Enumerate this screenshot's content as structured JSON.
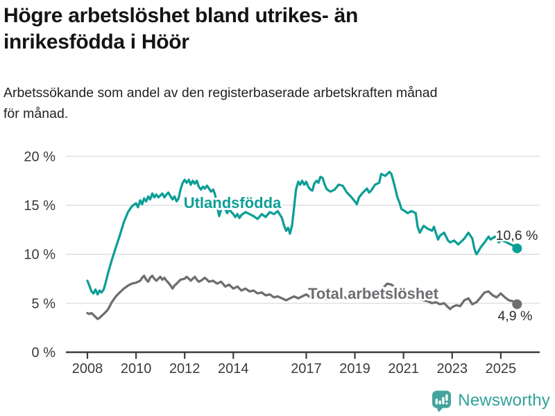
{
  "header": {
    "title_lines": [
      "Högre arbetslöshet bland utrikes- än",
      "inrikesfödda i Höör"
    ],
    "subtitle_lines": [
      "Arbetssökande som andel av den registerbaserade arbetskraften månad",
      "för månad."
    ]
  },
  "footer": {
    "brand": "Newsworthy",
    "logo_icon": "bar-chart-speech-bubble-icon"
  },
  "colors": {
    "foreign_born_line": "#0d9e96",
    "total_line": "#6d6d72",
    "grid": "#dcdcdc",
    "axis": "#3a3a3a",
    "tick_text": "#3a3a3a",
    "brand_teal": "#30a29a",
    "brand_icon_teal": "#44a39c"
  },
  "chart_data": {
    "type": "line",
    "unit": "%",
    "grid": true,
    "legend_position": "inline-labels",
    "x_axis": {
      "tick_years": [
        2008,
        2010,
        2012,
        2014,
        2017,
        2019,
        2021,
        2023,
        2025
      ],
      "tick_labels": [
        "2008",
        "2010",
        "2012",
        "2014",
        "2017",
        "2019",
        "2021",
        "2023",
        "2025"
      ],
      "range": [
        2007.1,
        2026.4
      ]
    },
    "y_axis": {
      "ticks": [
        0,
        5,
        10,
        15,
        20
      ],
      "tick_labels": [
        "0 %",
        "5 %",
        "10 %",
        "15 %",
        "20 %"
      ],
      "range": [
        0,
        20.8
      ]
    },
    "series": [
      {
        "name": "Utlandsfödda",
        "color": "#0d9e96",
        "end_label": "10,6 %",
        "end_value": 10.6,
        "points": [
          [
            2008.0,
            7.3
          ],
          [
            2008.08,
            6.8
          ],
          [
            2008.17,
            6.2
          ],
          [
            2008.25,
            6.0
          ],
          [
            2008.33,
            6.4
          ],
          [
            2008.42,
            5.9
          ],
          [
            2008.5,
            6.3
          ],
          [
            2008.58,
            6.1
          ],
          [
            2008.67,
            6.4
          ],
          [
            2008.75,
            7.1
          ],
          [
            2008.83,
            7.9
          ],
          [
            2008.92,
            8.7
          ],
          [
            2009.0,
            9.4
          ],
          [
            2009.17,
            10.7
          ],
          [
            2009.33,
            11.9
          ],
          [
            2009.5,
            13.3
          ],
          [
            2009.67,
            14.3
          ],
          [
            2009.83,
            14.9
          ],
          [
            2010.0,
            15.2
          ],
          [
            2010.08,
            14.8
          ],
          [
            2010.17,
            15.5
          ],
          [
            2010.25,
            15.1
          ],
          [
            2010.33,
            15.7
          ],
          [
            2010.42,
            15.4
          ],
          [
            2010.5,
            15.9
          ],
          [
            2010.58,
            15.6
          ],
          [
            2010.67,
            16.2
          ],
          [
            2010.75,
            15.8
          ],
          [
            2010.83,
            16.1
          ],
          [
            2010.92,
            15.8
          ],
          [
            2011.0,
            16.0
          ],
          [
            2011.08,
            16.2
          ],
          [
            2011.17,
            15.8
          ],
          [
            2011.25,
            16.1
          ],
          [
            2011.33,
            16.3
          ],
          [
            2011.42,
            15.9
          ],
          [
            2011.5,
            15.6
          ],
          [
            2011.58,
            15.9
          ],
          [
            2011.67,
            15.4
          ],
          [
            2011.75,
            15.7
          ],
          [
            2011.83,
            16.6
          ],
          [
            2011.92,
            17.3
          ],
          [
            2012.0,
            17.6
          ],
          [
            2012.08,
            17.3
          ],
          [
            2012.17,
            17.6
          ],
          [
            2012.25,
            17.1
          ],
          [
            2012.33,
            17.5
          ],
          [
            2012.42,
            17.2
          ],
          [
            2012.5,
            17.5
          ],
          [
            2012.58,
            16.9
          ],
          [
            2012.67,
            16.6
          ],
          [
            2012.75,
            16.9
          ],
          [
            2012.83,
            16.7
          ],
          [
            2012.92,
            17.0
          ],
          [
            2013.0,
            16.7
          ],
          [
            2013.08,
            16.4
          ],
          [
            2013.17,
            16.6
          ],
          [
            2013.25,
            16.1
          ],
          [
            2013.33,
            14.9
          ],
          [
            2013.42,
            13.9
          ],
          [
            2013.5,
            14.6
          ],
          [
            2013.58,
            15.1
          ],
          [
            2013.67,
            14.6
          ],
          [
            2013.75,
            14.2
          ],
          [
            2013.83,
            14.6
          ],
          [
            2013.92,
            14.3
          ],
          [
            2014.0,
            14.1
          ],
          [
            2014.08,
            13.8
          ],
          [
            2014.17,
            14.1
          ],
          [
            2014.25,
            13.7
          ],
          [
            2014.33,
            14.0
          ],
          [
            2014.5,
            14.3
          ],
          [
            2014.67,
            14.1
          ],
          [
            2014.83,
            13.9
          ],
          [
            2015.0,
            13.6
          ],
          [
            2015.17,
            14.1
          ],
          [
            2015.33,
            13.8
          ],
          [
            2015.5,
            14.3
          ],
          [
            2015.67,
            14.1
          ],
          [
            2015.83,
            14.4
          ],
          [
            2016.0,
            13.7
          ],
          [
            2016.08,
            13.0
          ],
          [
            2016.17,
            12.4
          ],
          [
            2016.25,
            12.7
          ],
          [
            2016.33,
            12.1
          ],
          [
            2016.42,
            13.0
          ],
          [
            2016.5,
            14.8
          ],
          [
            2016.58,
            16.6
          ],
          [
            2016.67,
            17.4
          ],
          [
            2016.75,
            17.1
          ],
          [
            2016.83,
            17.5
          ],
          [
            2016.92,
            17.1
          ],
          [
            2017.0,
            17.4
          ],
          [
            2017.08,
            16.9
          ],
          [
            2017.17,
            16.6
          ],
          [
            2017.25,
            16.5
          ],
          [
            2017.33,
            17.2
          ],
          [
            2017.42,
            17.5
          ],
          [
            2017.5,
            17.3
          ],
          [
            2017.58,
            17.9
          ],
          [
            2017.67,
            17.8
          ],
          [
            2017.75,
            17.2
          ],
          [
            2017.83,
            16.7
          ],
          [
            2017.92,
            16.5
          ],
          [
            2018.0,
            16.4
          ],
          [
            2018.17,
            16.6
          ],
          [
            2018.33,
            17.1
          ],
          [
            2018.5,
            17.0
          ],
          [
            2018.67,
            16.3
          ],
          [
            2018.83,
            15.9
          ],
          [
            2019.0,
            15.4
          ],
          [
            2019.08,
            15.1
          ],
          [
            2019.17,
            15.8
          ],
          [
            2019.33,
            16.3
          ],
          [
            2019.5,
            16.7
          ],
          [
            2019.58,
            16.3
          ],
          [
            2019.67,
            16.5
          ],
          [
            2019.83,
            17.1
          ],
          [
            2020.0,
            17.3
          ],
          [
            2020.08,
            18.2
          ],
          [
            2020.25,
            18.0
          ],
          [
            2020.42,
            18.4
          ],
          [
            2020.5,
            18.2
          ],
          [
            2020.58,
            17.5
          ],
          [
            2020.67,
            16.6
          ],
          [
            2020.75,
            15.8
          ],
          [
            2020.83,
            15.3
          ],
          [
            2020.92,
            14.6
          ],
          [
            2021.0,
            14.5
          ],
          [
            2021.17,
            14.2
          ],
          [
            2021.33,
            14.4
          ],
          [
            2021.5,
            14.2
          ],
          [
            2021.58,
            12.8
          ],
          [
            2021.67,
            12.2
          ],
          [
            2021.83,
            12.9
          ],
          [
            2022.0,
            12.6
          ],
          [
            2022.17,
            12.4
          ],
          [
            2022.25,
            12.8
          ],
          [
            2022.42,
            11.5
          ],
          [
            2022.5,
            11.9
          ],
          [
            2022.67,
            12.2
          ],
          [
            2022.83,
            11.4
          ],
          [
            2022.92,
            11.2
          ],
          [
            2023.08,
            11.4
          ],
          [
            2023.25,
            11.0
          ],
          [
            2023.42,
            11.4
          ],
          [
            2023.5,
            11.6
          ],
          [
            2023.67,
            12.2
          ],
          [
            2023.83,
            11.6
          ],
          [
            2023.92,
            10.5
          ],
          [
            2024.0,
            10.0
          ],
          [
            2024.08,
            10.3
          ],
          [
            2024.17,
            10.7
          ],
          [
            2024.33,
            11.2
          ],
          [
            2024.5,
            11.8
          ],
          [
            2024.58,
            11.5
          ],
          [
            2024.75,
            11.8
          ],
          [
            2024.92,
            11.2
          ],
          [
            2025.0,
            11.4
          ],
          [
            2025.17,
            11.3
          ],
          [
            2025.33,
            11.1
          ],
          [
            2025.5,
            10.9
          ],
          [
            2025.67,
            10.6
          ]
        ]
      },
      {
        "name": "Total arbetslöshet",
        "color": "#6d6d72",
        "end_label": "4,9 %",
        "end_value": 4.9,
        "points": [
          [
            2008.0,
            4.0
          ],
          [
            2008.08,
            3.9
          ],
          [
            2008.17,
            4.0
          ],
          [
            2008.25,
            3.8
          ],
          [
            2008.33,
            3.6
          ],
          [
            2008.42,
            3.4
          ],
          [
            2008.5,
            3.5
          ],
          [
            2008.58,
            3.7
          ],
          [
            2008.67,
            3.9
          ],
          [
            2008.83,
            4.3
          ],
          [
            2008.92,
            4.7
          ],
          [
            2009.0,
            5.1
          ],
          [
            2009.17,
            5.7
          ],
          [
            2009.33,
            6.1
          ],
          [
            2009.5,
            6.5
          ],
          [
            2009.67,
            6.8
          ],
          [
            2009.83,
            7.0
          ],
          [
            2010.0,
            7.1
          ],
          [
            2010.17,
            7.3
          ],
          [
            2010.25,
            7.6
          ],
          [
            2010.33,
            7.8
          ],
          [
            2010.42,
            7.4
          ],
          [
            2010.5,
            7.2
          ],
          [
            2010.58,
            7.6
          ],
          [
            2010.67,
            7.8
          ],
          [
            2010.75,
            7.5
          ],
          [
            2010.83,
            7.3
          ],
          [
            2010.92,
            7.5
          ],
          [
            2011.0,
            7.7
          ],
          [
            2011.08,
            7.4
          ],
          [
            2011.17,
            7.6
          ],
          [
            2011.25,
            7.3
          ],
          [
            2011.33,
            7.1
          ],
          [
            2011.42,
            6.8
          ],
          [
            2011.5,
            6.5
          ],
          [
            2011.58,
            6.8
          ],
          [
            2011.67,
            7.0
          ],
          [
            2011.75,
            7.2
          ],
          [
            2011.83,
            7.4
          ],
          [
            2012.0,
            7.5
          ],
          [
            2012.08,
            7.7
          ],
          [
            2012.17,
            7.5
          ],
          [
            2012.25,
            7.3
          ],
          [
            2012.33,
            7.5
          ],
          [
            2012.42,
            7.7
          ],
          [
            2012.5,
            7.4
          ],
          [
            2012.58,
            7.2
          ],
          [
            2012.67,
            7.3
          ],
          [
            2012.83,
            7.6
          ],
          [
            2012.92,
            7.4
          ],
          [
            2013.0,
            7.2
          ],
          [
            2013.17,
            7.3
          ],
          [
            2013.33,
            7.0
          ],
          [
            2013.5,
            7.2
          ],
          [
            2013.67,
            6.7
          ],
          [
            2013.83,
            6.9
          ],
          [
            2014.0,
            6.5
          ],
          [
            2014.17,
            6.7
          ],
          [
            2014.33,
            6.3
          ],
          [
            2014.5,
            6.5
          ],
          [
            2014.67,
            6.2
          ],
          [
            2014.83,
            6.3
          ],
          [
            2015.0,
            6.0
          ],
          [
            2015.17,
            6.1
          ],
          [
            2015.33,
            5.8
          ],
          [
            2015.5,
            5.9
          ],
          [
            2015.67,
            5.6
          ],
          [
            2015.83,
            5.7
          ],
          [
            2016.0,
            5.5
          ],
          [
            2016.17,
            5.3
          ],
          [
            2016.33,
            5.5
          ],
          [
            2016.5,
            5.7
          ],
          [
            2016.67,
            5.5
          ],
          [
            2016.83,
            5.7
          ],
          [
            2017.0,
            5.9
          ],
          [
            2017.17,
            5.6
          ],
          [
            2017.33,
            5.8
          ],
          [
            2017.5,
            5.5
          ],
          [
            2017.67,
            5.7
          ],
          [
            2017.83,
            5.4
          ],
          [
            2018.0,
            5.6
          ],
          [
            2018.17,
            5.8
          ],
          [
            2018.33,
            5.5
          ],
          [
            2018.5,
            5.7
          ],
          [
            2018.67,
            5.5
          ],
          [
            2018.83,
            5.7
          ],
          [
            2019.0,
            5.9
          ],
          [
            2019.17,
            5.7
          ],
          [
            2019.33,
            5.5
          ],
          [
            2019.5,
            5.7
          ],
          [
            2019.67,
            5.6
          ],
          [
            2019.83,
            5.8
          ],
          [
            2020.0,
            6.1
          ],
          [
            2020.17,
            6.6
          ],
          [
            2020.33,
            7.0
          ],
          [
            2020.5,
            6.9
          ],
          [
            2020.67,
            6.6
          ],
          [
            2020.83,
            6.3
          ],
          [
            2021.0,
            6.1
          ],
          [
            2021.17,
            5.9
          ],
          [
            2021.33,
            5.7
          ],
          [
            2021.5,
            5.6
          ],
          [
            2021.67,
            5.4
          ],
          [
            2021.83,
            5.3
          ],
          [
            2022.0,
            5.2
          ],
          [
            2022.17,
            5.0
          ],
          [
            2022.33,
            5.1
          ],
          [
            2022.5,
            4.9
          ],
          [
            2022.67,
            5.0
          ],
          [
            2022.83,
            4.6
          ],
          [
            2022.92,
            4.4
          ],
          [
            2023.0,
            4.6
          ],
          [
            2023.17,
            4.8
          ],
          [
            2023.33,
            4.7
          ],
          [
            2023.5,
            5.3
          ],
          [
            2023.67,
            5.5
          ],
          [
            2023.83,
            4.9
          ],
          [
            2024.0,
            5.1
          ],
          [
            2024.17,
            5.6
          ],
          [
            2024.33,
            6.1
          ],
          [
            2024.5,
            6.2
          ],
          [
            2024.67,
            5.8
          ],
          [
            2024.83,
            5.6
          ],
          [
            2025.0,
            6.0
          ],
          [
            2025.17,
            5.6
          ],
          [
            2025.33,
            5.3
          ],
          [
            2025.5,
            5.2
          ],
          [
            2025.67,
            4.9
          ]
        ]
      }
    ]
  }
}
